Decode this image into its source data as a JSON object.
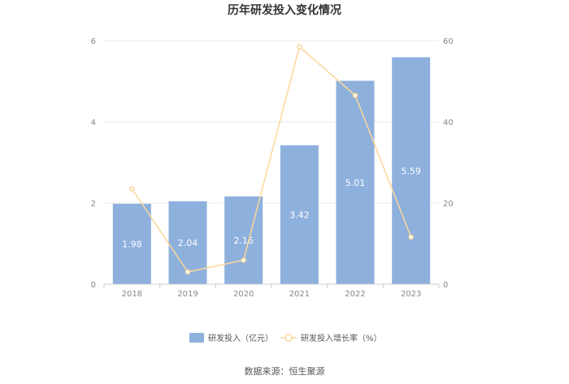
{
  "colors": {
    "bar": "#8eb0dd",
    "line": "#fbd89a",
    "grid": "#e8e8e8",
    "axis": "#cccccc"
  },
  "chart_data": {
    "type": "bar",
    "title": "历年研发投入变化情况",
    "categories": [
      "2018",
      "2019",
      "2020",
      "2021",
      "2022",
      "2023"
    ],
    "series": [
      {
        "name": "研发投入（亿元）",
        "type": "bar",
        "axis": "left",
        "values": [
          1.98,
          2.04,
          2.16,
          3.42,
          5.01,
          5.59
        ],
        "labels": [
          "1.98",
          "2.04",
          "2.16",
          "3.42",
          "5.01",
          "5.59"
        ]
      },
      {
        "name": "研发投入增长率（%）",
        "type": "line",
        "axis": "right",
        "values": [
          23.5,
          3.0,
          5.9,
          58.5,
          46.5,
          11.6
        ]
      }
    ],
    "y_left": {
      "min": 0,
      "max": 6,
      "ticks": [
        "0",
        "2",
        "4",
        "6"
      ]
    },
    "y_right": {
      "min": 0,
      "max": 60,
      "ticks": [
        "0",
        "20",
        "40",
        "60"
      ]
    },
    "grid": true,
    "legend_position": "bottom"
  },
  "source_text": "数据来源：恒生聚源"
}
